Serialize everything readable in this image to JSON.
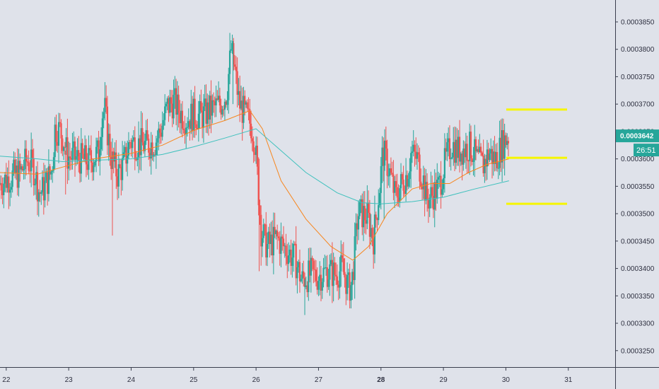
{
  "chart_data": {
    "type": "candlestick",
    "y_axis": {
      "range": [
        0.000322,
        0.000389
      ],
      "ticks": [
        "0.0003250",
        "0.0003300",
        "0.0003350",
        "0.0003400",
        "0.0003450",
        "0.0003500",
        "0.0003550",
        "0.0003600",
        "0.0003650",
        "0.0003700",
        "0.0003750",
        "0.0003800",
        "0.0003850"
      ]
    },
    "x_axis": {
      "range": [
        21.9,
        31.75
      ],
      "ticks": [
        {
          "value": 22,
          "label": "22",
          "bold": false
        },
        {
          "value": 23,
          "label": "23",
          "bold": false
        },
        {
          "value": 24,
          "label": "24",
          "bold": false
        },
        {
          "value": 25,
          "label": "25",
          "bold": false
        },
        {
          "value": 26,
          "label": "26",
          "bold": false
        },
        {
          "value": 27,
          "label": "27",
          "bold": false
        },
        {
          "value": 28,
          "label": "28",
          "bold": true
        },
        {
          "value": 29,
          "label": "29",
          "bold": false
        },
        {
          "value": 30,
          "label": "30",
          "bold": false
        },
        {
          "value": 31,
          "label": "31",
          "bold": false
        }
      ]
    },
    "last_price": {
      "value": 0.0003642,
      "label": "0.0003642",
      "countdown": "26:51"
    },
    "horizontal_levels": [
      0.000369,
      0.0003602,
      0.0003518
    ],
    "price_path": [
      [
        21.9,
        0.0003555
      ],
      [
        22.05,
        0.0003565
      ],
      [
        22.25,
        0.0003575
      ],
      [
        22.35,
        0.0003598
      ],
      [
        22.45,
        0.0003585
      ],
      [
        22.55,
        0.0003538
      ],
      [
        22.62,
        0.0003545
      ],
      [
        22.75,
        0.000358
      ],
      [
        22.8,
        0.0003655
      ],
      [
        22.88,
        0.0003652
      ],
      [
        22.95,
        0.000363
      ],
      [
        23.0,
        0.0003605
      ],
      [
        23.2,
        0.00036
      ],
      [
        23.35,
        0.0003595
      ],
      [
        23.5,
        0.0003612
      ],
      [
        23.55,
        0.0003682
      ],
      [
        23.6,
        0.0003688
      ],
      [
        23.65,
        0.000364
      ],
      [
        23.7,
        0.0003602
      ],
      [
        23.8,
        0.0003572
      ],
      [
        23.9,
        0.000359
      ],
      [
        24.0,
        0.0003632
      ],
      [
        24.1,
        0.0003628
      ],
      [
        24.25,
        0.0003625
      ],
      [
        24.4,
        0.000363
      ],
      [
        24.5,
        0.0003655
      ],
      [
        24.6,
        0.0003695
      ],
      [
        24.7,
        0.0003705
      ],
      [
        24.8,
        0.0003685
      ],
      [
        24.9,
        0.0003672
      ],
      [
        25.0,
        0.000368
      ],
      [
        25.15,
        0.0003678
      ],
      [
        25.3,
        0.000369
      ],
      [
        25.45,
        0.00037
      ],
      [
        25.55,
        0.000372
      ],
      [
        25.62,
        0.00038
      ],
      [
        25.68,
        0.000376
      ],
      [
        25.75,
        0.00037
      ],
      [
        25.85,
        0.000368
      ],
      [
        25.95,
        0.000366
      ],
      [
        26.0,
        0.000363
      ],
      [
        26.05,
        0.0003555
      ],
      [
        26.1,
        0.000347
      ],
      [
        26.2,
        0.000344
      ],
      [
        26.35,
        0.0003455
      ],
      [
        26.5,
        0.0003435
      ],
      [
        26.65,
        0.0003415
      ],
      [
        26.75,
        0.0003378
      ],
      [
        26.9,
        0.000339
      ],
      [
        27.0,
        0.0003385
      ],
      [
        27.15,
        0.0003395
      ],
      [
        27.3,
        0.000339
      ],
      [
        27.4,
        0.00034
      ],
      [
        27.5,
        0.0003365
      ],
      [
        27.55,
        0.000337
      ],
      [
        27.6,
        0.000343
      ],
      [
        27.65,
        0.00035
      ],
      [
        27.7,
        0.00035
      ],
      [
        27.8,
        0.0003495
      ],
      [
        27.9,
        0.0003455
      ],
      [
        28.0,
        0.000355
      ],
      [
        28.05,
        0.0003615
      ],
      [
        28.15,
        0.000358
      ],
      [
        28.25,
        0.000353
      ],
      [
        28.35,
        0.0003555
      ],
      [
        28.45,
        0.0003575
      ],
      [
        28.5,
        0.000361
      ],
      [
        28.6,
        0.00036
      ],
      [
        28.7,
        0.000356
      ],
      [
        28.75,
        0.0003525
      ],
      [
        28.85,
        0.0003535
      ],
      [
        28.95,
        0.000355
      ],
      [
        29.05,
        0.0003595
      ],
      [
        29.15,
        0.0003628
      ],
      [
        29.25,
        0.0003615
      ],
      [
        29.35,
        0.0003618
      ],
      [
        29.45,
        0.0003622
      ],
      [
        29.55,
        0.00036
      ],
      [
        29.65,
        0.0003588
      ],
      [
        29.75,
        0.0003612
      ],
      [
        29.85,
        0.0003598
      ],
      [
        29.95,
        0.0003625
      ],
      [
        30.05,
        0.0003642
      ]
    ],
    "series": [
      {
        "color": "#f7861e",
        "points": [
          [
            21.9,
            0.0003575
          ],
          [
            22.5,
            0.0003572
          ],
          [
            22.9,
            0.0003585
          ],
          [
            23.4,
            0.00036
          ],
          [
            24.0,
            0.000361
          ],
          [
            24.5,
            0.0003625
          ],
          [
            25.0,
            0.0003652
          ],
          [
            25.5,
            0.000367
          ],
          [
            25.9,
            0.0003688
          ],
          [
            26.1,
            0.0003655
          ],
          [
            26.4,
            0.000356
          ],
          [
            26.8,
            0.000349
          ],
          [
            27.2,
            0.000344
          ],
          [
            27.55,
            0.0003415
          ],
          [
            27.8,
            0.000344
          ],
          [
            28.1,
            0.00035
          ],
          [
            28.5,
            0.0003545
          ],
          [
            28.8,
            0.0003555
          ],
          [
            29.1,
            0.0003555
          ],
          [
            29.4,
            0.0003575
          ],
          [
            29.7,
            0.000359
          ],
          [
            30.05,
            0.00036
          ]
        ]
      },
      {
        "color": "#3fc1bd",
        "points": [
          [
            21.9,
            0.0003605
          ],
          [
            22.5,
            0.00036
          ],
          [
            22.9,
            0.0003595
          ],
          [
            23.5,
            0.0003598
          ],
          [
            24.0,
            0.00036
          ],
          [
            24.5,
            0.0003608
          ],
          [
            25.0,
            0.0003622
          ],
          [
            25.5,
            0.0003638
          ],
          [
            26.0,
            0.0003655
          ],
          [
            26.3,
            0.0003625
          ],
          [
            26.8,
            0.0003575
          ],
          [
            27.3,
            0.0003538
          ],
          [
            27.7,
            0.000352
          ],
          [
            28.0,
            0.0003518
          ],
          [
            28.5,
            0.0003522
          ],
          [
            29.0,
            0.000353
          ],
          [
            29.5,
            0.0003545
          ],
          [
            30.05,
            0.000356
          ]
        ]
      }
    ],
    "colors": {
      "background": "#dfe2ea",
      "up": "#26a69a",
      "down": "#ef5350",
      "level": "#f6f600",
      "price_label": "#26a69a",
      "axis": "#3a3e4e"
    }
  }
}
